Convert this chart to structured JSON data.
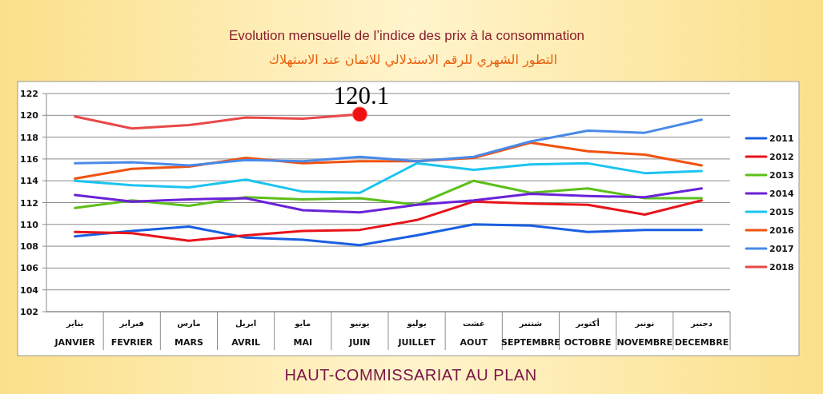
{
  "chart_data": {
    "type": "line",
    "title": "Evolution mensuelle de l’indice des prix à la consommation",
    "subtitle": "التطور الشهري للرقم الاستدلالي للاثمان عند الاستهلاك",
    "categories": [
      "يناير\nJANVIER",
      "فبراير\nFEVRIER",
      "مارس\nMARS",
      "ابريل\nAVRIL",
      "مايو\nMAI",
      "يونيو\nJUIN",
      "يوليو\nJUILLET",
      "غشت\nAOUT",
      "شتنبر\nSEPTEMBRE",
      "أكتوبر\nOCTOBRE",
      "نونبر\nNOVEMBRE",
      "دجنبر\nDECEMBRE"
    ],
    "series": [
      {
        "name": "2011",
        "color": "#1a5fe0",
        "values": [
          108.9,
          109.4,
          109.8,
          108.8,
          108.6,
          108.1,
          109.0,
          110.0,
          109.9,
          109.3,
          109.5,
          109.5
        ]
      },
      {
        "name": "2012",
        "color": "#e8141a",
        "values": [
          109.3,
          109.2,
          108.5,
          109.0,
          109.4,
          109.5,
          110.4,
          112.1,
          111.9,
          111.8,
          110.9,
          112.2
        ]
      },
      {
        "name": "2013",
        "color": "#5cbf1a",
        "values": [
          111.5,
          112.2,
          111.7,
          112.5,
          112.3,
          112.4,
          111.8,
          114.0,
          112.9,
          113.3,
          112.4,
          112.4
        ]
      },
      {
        "name": "2014",
        "color": "#6a22d8",
        "values": [
          112.7,
          112.1,
          112.3,
          112.4,
          111.3,
          111.1,
          111.8,
          112.2,
          112.8,
          112.6,
          112.5,
          113.3
        ]
      },
      {
        "name": "2015",
        "color": "#1cc4f0",
        "values": [
          114.0,
          113.6,
          113.4,
          114.1,
          113.0,
          112.9,
          115.6,
          115.0,
          115.5,
          115.6,
          114.7,
          114.9
        ]
      },
      {
        "name": "2016",
        "color": "#f0520f",
        "values": [
          114.2,
          115.1,
          115.3,
          116.1,
          115.6,
          115.8,
          115.8,
          116.1,
          117.5,
          116.7,
          116.4,
          115.4
        ]
      },
      {
        "name": "2017",
        "color": "#4a8ae8",
        "values": [
          115.6,
          115.7,
          115.4,
          115.9,
          115.8,
          116.2,
          115.8,
          116.2,
          117.6,
          118.6,
          118.4,
          119.6
        ]
      },
      {
        "name": "2018",
        "color": "#e84848",
        "values": [
          119.9,
          118.8,
          119.1,
          119.8,
          119.7,
          120.1,
          null,
          null,
          null,
          null,
          null,
          null
        ]
      }
    ],
    "ylim": [
      102,
      122
    ],
    "yticks": [
      102,
      104,
      106,
      108,
      110,
      112,
      114,
      116,
      118,
      120,
      122
    ],
    "grid": "y",
    "legend": "right",
    "annotations": [
      {
        "text": "120.1",
        "x": "يونيو\nJUIN",
        "y": 120.1
      },
      "HAUT-COMMISSARIAT AU PLAN"
    ]
  }
}
